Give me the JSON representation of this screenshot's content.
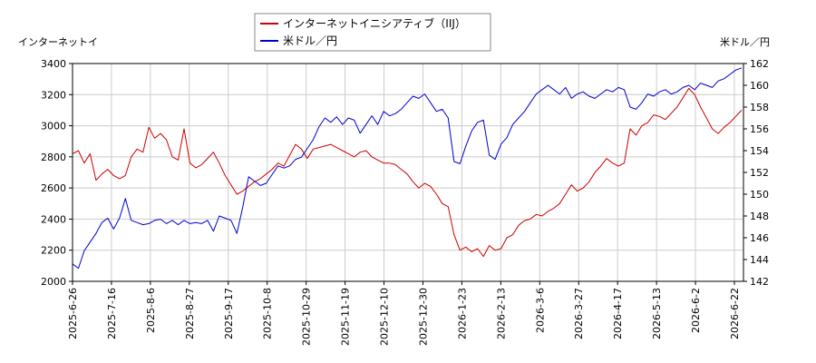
{
  "chart_data": {
    "type": "line",
    "ylabel_left": "インターネットイ",
    "ylabel_right": "米ドル／円",
    "legend_position": "top-center",
    "grid": true,
    "left_axis": {
      "ylim": [
        2000,
        3400
      ],
      "ticks": [
        2000,
        2200,
        2400,
        2600,
        2800,
        3000,
        3200,
        3400
      ]
    },
    "right_axis": {
      "ylim": [
        142,
        162
      ],
      "ticks": [
        142,
        144,
        146,
        148,
        150,
        152,
        154,
        156,
        158,
        160,
        162
      ]
    },
    "x_tick_labels": [
      "2025-6-26",
      "2025-7-16",
      "2025-8-6",
      "2025-8-27",
      "2025-9-17",
      "2025-10-8",
      "2025-10-29",
      "2025-11-19",
      "2025-12-10",
      "2025-12-30",
      "2026-1-23",
      "2026-2-13",
      "2026-3-6",
      "2026-3-27",
      "2026-4-17",
      "2026-5-13",
      "2026-6-2",
      "2026-6-22"
    ],
    "series": [
      {
        "name": "インターネットイニシアティブ（IIJ）",
        "axis": "left",
        "color": "#cc0000",
        "values": [
          2820,
          2840,
          2760,
          2820,
          2650,
          2690,
          2720,
          2680,
          2660,
          2680,
          2800,
          2850,
          2830,
          2990,
          2920,
          2950,
          2910,
          2800,
          2780,
          2980,
          2760,
          2730,
          2750,
          2790,
          2830,
          2760,
          2680,
          2620,
          2560,
          2580,
          2610,
          2640,
          2660,
          2690,
          2720,
          2760,
          2740,
          2810,
          2880,
          2850,
          2790,
          2850,
          2860,
          2870,
          2880,
          2860,
          2840,
          2820,
          2800,
          2830,
          2840,
          2800,
          2780,
          2760,
          2760,
          2750,
          2720,
          2690,
          2640,
          2600,
          2630,
          2610,
          2560,
          2500,
          2480,
          2300,
          2200,
          2220,
          2190,
          2210,
          2160,
          2230,
          2200,
          2210,
          2280,
          2300,
          2360,
          2390,
          2400,
          2430,
          2420,
          2450,
          2470,
          2500,
          2560,
          2620,
          2580,
          2600,
          2640,
          2700,
          2740,
          2790,
          2760,
          2740,
          2760,
          2980,
          2940,
          3000,
          3020,
          3070,
          3060,
          3040,
          3080,
          3120,
          3180,
          3240,
          3200,
          3120,
          3050,
          2980,
          2950,
          2990,
          3020,
          3060,
          3100
        ]
      },
      {
        "name": "米ドル／円",
        "axis": "right",
        "color": "#0000cc",
        "values": [
          143.6,
          143.2,
          144.8,
          145.6,
          146.4,
          147.4,
          147.8,
          146.8,
          147.8,
          149.6,
          147.6,
          147.4,
          147.2,
          147.3,
          147.6,
          147.7,
          147.3,
          147.6,
          147.2,
          147.6,
          147.3,
          147.4,
          147.3,
          147.6,
          146.6,
          148.0,
          147.8,
          147.6,
          146.4,
          148.8,
          151.6,
          151.2,
          150.8,
          151.0,
          151.8,
          152.6,
          152.4,
          152.6,
          153.2,
          153.4,
          154.2,
          155.0,
          156.2,
          157.0,
          156.6,
          157.1,
          156.4,
          157.0,
          156.8,
          155.6,
          156.4,
          157.2,
          156.4,
          157.6,
          157.2,
          157.4,
          157.8,
          158.4,
          159.0,
          158.8,
          159.2,
          158.4,
          157.6,
          157.8,
          157.0,
          153.0,
          152.8,
          154.4,
          155.8,
          156.6,
          156.8,
          153.6,
          153.2,
          154.6,
          155.2,
          156.4,
          157.0,
          157.6,
          158.4,
          159.2,
          159.6,
          160.0,
          159.6,
          159.2,
          159.8,
          158.8,
          159.2,
          159.4,
          159.0,
          158.8,
          159.2,
          159.6,
          159.4,
          159.8,
          159.6,
          158.0,
          157.8,
          158.4,
          159.2,
          159.0,
          159.4,
          159.6,
          159.2,
          159.4,
          159.8,
          160.0,
          159.6,
          160.2,
          160.0,
          159.8,
          160.4,
          160.6,
          161.0,
          161.4,
          161.6
        ]
      }
    ]
  }
}
